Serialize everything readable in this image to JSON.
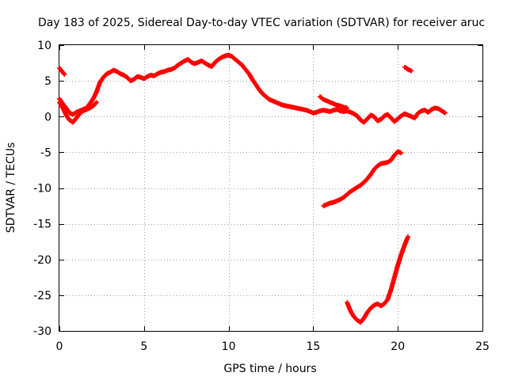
{
  "chart_data": {
    "type": "scatter",
    "title": "Day 183 of 2025, Sidereal Day-to-day VTEC variation (SDTVAR) for receiver aruc",
    "xlabel": "GPS time / hours",
    "ylabel": "SDTVAR / TECUs",
    "xlim": [
      0,
      25
    ],
    "ylim": [
      -30,
      10
    ],
    "xticks": [
      0,
      5,
      10,
      15,
      20,
      25
    ],
    "yticks": [
      -30,
      -25,
      -20,
      -15,
      -10,
      -5,
      0,
      5,
      10
    ],
    "grid": true,
    "marker": "+",
    "color": "#ff0000",
    "series": [
      {
        "name": "track-main",
        "x": [
          0.0,
          0.2,
          0.4,
          0.6,
          0.8,
          1.0,
          1.2,
          1.4,
          1.6,
          1.8,
          2.0,
          2.2,
          2.4,
          2.6,
          2.8,
          3.0,
          3.2,
          3.4,
          3.6,
          3.8,
          4.0,
          4.2,
          4.4,
          4.6,
          4.8,
          5.0,
          5.2,
          5.4,
          5.6,
          5.8,
          6.0,
          6.2,
          6.4,
          6.6,
          6.8,
          7.0,
          7.2,
          7.4,
          7.6,
          7.8,
          8.0,
          8.2,
          8.4,
          8.6,
          8.8,
          9.0,
          9.2,
          9.4,
          9.6,
          9.8,
          10.0,
          10.2,
          10.4,
          10.6,
          10.8,
          11.0,
          11.2,
          11.4,
          11.6,
          11.8,
          12.0,
          12.2,
          12.4,
          12.6,
          12.8,
          13.0,
          13.2,
          13.4,
          13.6,
          13.8,
          14.0,
          14.2,
          14.4,
          14.6,
          14.8,
          15.0,
          15.2,
          15.4,
          15.6,
          15.8,
          16.0,
          16.2,
          16.4,
          16.6,
          16.8,
          17.0,
          17.2,
          17.4,
          17.6,
          17.8,
          18.0,
          18.2,
          18.4,
          18.6,
          18.8,
          19.0,
          19.2,
          19.4,
          19.6,
          19.8,
          20.0,
          20.2,
          20.4,
          20.6,
          20.8,
          21.0,
          21.2,
          21.4,
          21.6,
          21.8,
          22.0,
          22.2,
          22.4,
          22.6,
          22.8
        ],
        "y": [
          2.5,
          1.8,
          1.2,
          0.5,
          0.3,
          0.6,
          0.8,
          1.0,
          1.2,
          1.8,
          2.5,
          3.5,
          4.8,
          5.5,
          6.0,
          6.2,
          6.5,
          6.3,
          6.0,
          5.8,
          5.5,
          5.0,
          5.2,
          5.6,
          5.5,
          5.3,
          5.6,
          5.8,
          5.7,
          6.0,
          6.2,
          6.3,
          6.5,
          6.6,
          6.8,
          7.2,
          7.5,
          7.8,
          8.0,
          7.6,
          7.4,
          7.6,
          7.8,
          7.5,
          7.2,
          7.0,
          7.6,
          8.0,
          8.3,
          8.5,
          8.6,
          8.4,
          8.0,
          7.6,
          7.2,
          6.6,
          6.0,
          5.2,
          4.5,
          3.8,
          3.2,
          2.8,
          2.4,
          2.2,
          2.0,
          1.8,
          1.6,
          1.5,
          1.4,
          1.3,
          1.2,
          1.1,
          1.0,
          0.9,
          0.7,
          0.5,
          0.6,
          0.8,
          0.9,
          0.8,
          0.7,
          0.9,
          1.0,
          0.8,
          0.7,
          0.8,
          0.6,
          0.4,
          0.1,
          -0.5,
          -0.8,
          -0.3,
          0.2,
          0.0,
          -0.6,
          -0.4,
          0.1,
          0.3,
          -0.2,
          -0.7,
          -0.3,
          0.1,
          0.4,
          0.2,
          0.0,
          -0.2,
          0.5,
          0.8,
          0.9,
          0.6,
          1.0,
          1.2,
          1.1,
          0.8,
          0.5
        ]
      },
      {
        "name": "track-early-lower",
        "x": [
          0.0,
          0.2,
          0.4,
          0.6,
          0.8,
          1.0,
          1.2,
          1.4,
          1.6,
          1.8,
          2.0,
          2.2
        ],
        "y": [
          2.0,
          1.2,
          0.2,
          -0.5,
          -0.8,
          -0.2,
          0.4,
          0.8,
          1.0,
          1.2,
          1.5,
          2.0
        ]
      },
      {
        "name": "track-start-high",
        "x": [
          0.0,
          0.1,
          0.2,
          0.3
        ],
        "y": [
          6.8,
          6.5,
          6.2,
          5.9
        ]
      },
      {
        "name": "track-mid-upper",
        "x": [
          15.4,
          15.6,
          15.8,
          16.0,
          16.2,
          16.4,
          16.6,
          16.8,
          17.0
        ],
        "y": [
          2.8,
          2.4,
          2.2,
          2.0,
          1.8,
          1.6,
          1.5,
          1.3,
          1.2
        ]
      },
      {
        "name": "track-isolated-high",
        "x": [
          20.4,
          20.5,
          20.6,
          20.7,
          20.8
        ],
        "y": [
          6.9,
          6.8,
          6.6,
          6.5,
          6.4
        ]
      },
      {
        "name": "track-negative-a",
        "x": [
          15.6,
          15.8,
          16.0,
          16.2,
          16.4,
          16.6,
          16.8,
          17.0,
          17.2,
          17.4,
          17.6,
          17.8,
          18.0,
          18.2,
          18.4,
          18.6,
          18.8,
          19.0,
          19.2,
          19.4,
          19.6,
          19.8,
          20.0,
          20.2
        ],
        "y": [
          -12.5,
          -12.3,
          -12.1,
          -12.0,
          -11.8,
          -11.6,
          -11.3,
          -10.9,
          -10.5,
          -10.2,
          -9.9,
          -9.6,
          -9.2,
          -8.7,
          -8.1,
          -7.4,
          -6.9,
          -6.6,
          -6.5,
          -6.4,
          -6.1,
          -5.4,
          -4.9,
          -5.1
        ]
      },
      {
        "name": "track-negative-b",
        "x": [
          17.0,
          17.2,
          17.4,
          17.6,
          17.8,
          18.0,
          18.2,
          18.4,
          18.6,
          18.8,
          19.0,
          19.2,
          19.4,
          19.6,
          19.8,
          20.0,
          20.2,
          20.4,
          20.6
        ],
        "y": [
          -26.0,
          -27.2,
          -28.0,
          -28.5,
          -28.8,
          -28.2,
          -27.4,
          -26.8,
          -26.4,
          -26.2,
          -26.5,
          -26.2,
          -25.6,
          -24.2,
          -22.5,
          -20.8,
          -19.3,
          -18.0,
          -16.8
        ]
      }
    ]
  }
}
